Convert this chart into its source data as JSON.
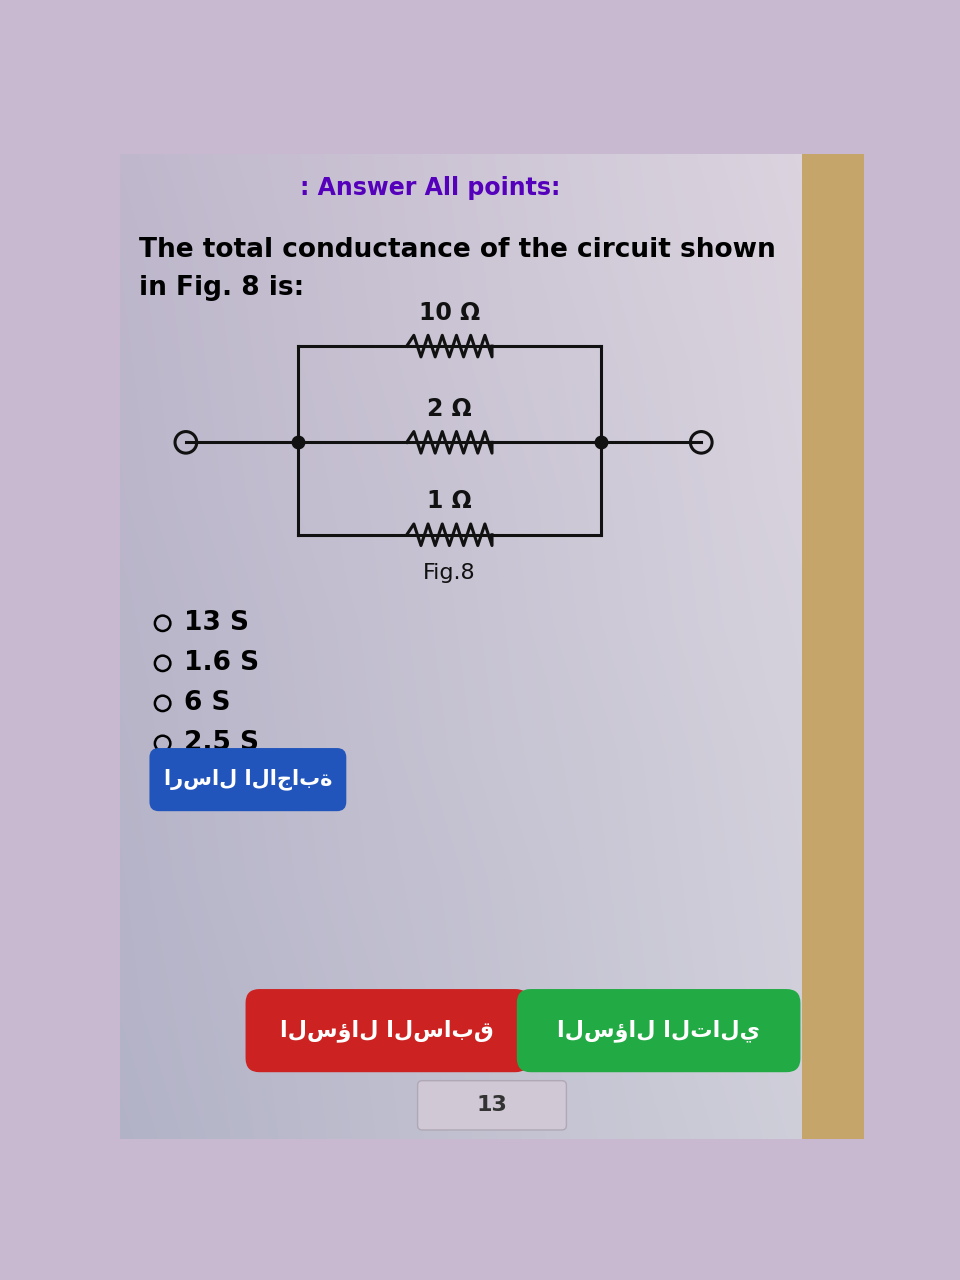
{
  "title_top": ": Answer All points:",
  "title_top_color": "#5500bb",
  "question_text_line1": "The total conductance of the circuit shown",
  "question_text_line2": "in Fig. 8 is:",
  "question_color": "#000000",
  "bg_color_tl": "#c8b8d8",
  "bg_color_br": "#d4ccd8",
  "options": [
    "13 S",
    "1.6 S",
    "6 S",
    "2.5 S"
  ],
  "options_color": "#000000",
  "fig_label": "Fig.8",
  "resistors": [
    "10 Ω",
    "2 Ω",
    "1 Ω"
  ],
  "circuit_line_color": "#111111",
  "submit_btn_text": "ارسال الاجابة",
  "submit_btn_color": "#2255bb",
  "prev_btn_text": "السؤال السابق",
  "prev_btn_color": "#cc2222",
  "next_btn_text": "السؤال التالي",
  "next_btn_color": "#22aa44",
  "page_num": "13",
  "wood_color": "#c8a870"
}
